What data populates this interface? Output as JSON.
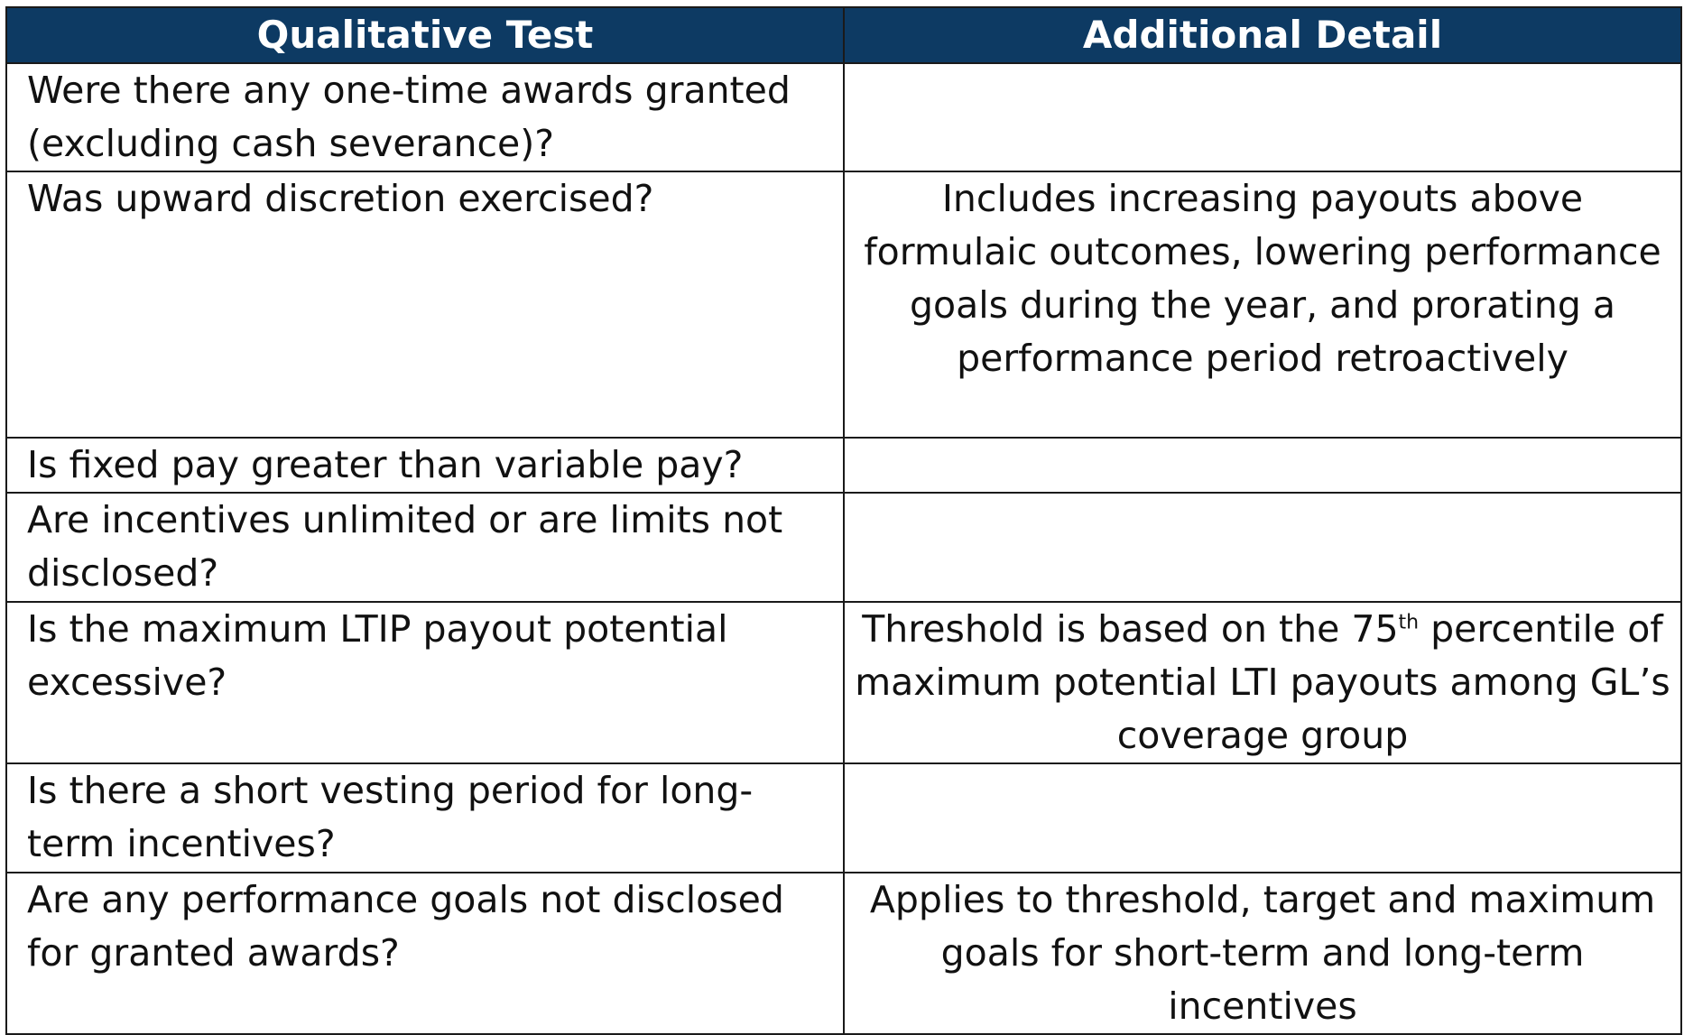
{
  "table": {
    "headers": [
      "Qualitative Test",
      "Additional Detail"
    ],
    "rows": [
      {
        "test": "Were there any one-time awards granted (excluding cash severance)?",
        "detail": ""
      },
      {
        "test": "Was upward discretion exercised?",
        "detail": "Includes increasing payouts above formulaic outcomes, lowering performance goals during the year, and prorating a performance period retroactively"
      },
      {
        "test": "Is fixed pay greater than variable pay?",
        "detail": ""
      },
      {
        "test": "Are incentives unlimited or are limits not disclosed?",
        "detail": ""
      },
      {
        "test": "Is the maximum LTIP payout potential excessive?",
        "detail_before": "Threshold is based on the 75",
        "detail_sup": "th",
        "detail_after": " percentile of maximum potential LTI payouts among GL’s coverage group"
      },
      {
        "test": "Is there a short vesting period for long-term incentives?",
        "detail": ""
      },
      {
        "test": "Are any performance goals not disclosed for granted awards?",
        "detail": "Applies to threshold, target and maximum goals for short-term and long-term incentives"
      }
    ]
  },
  "colors": {
    "header_bg": "#0d3a63",
    "header_text": "#ffffff",
    "border": "#1a1a1a"
  }
}
